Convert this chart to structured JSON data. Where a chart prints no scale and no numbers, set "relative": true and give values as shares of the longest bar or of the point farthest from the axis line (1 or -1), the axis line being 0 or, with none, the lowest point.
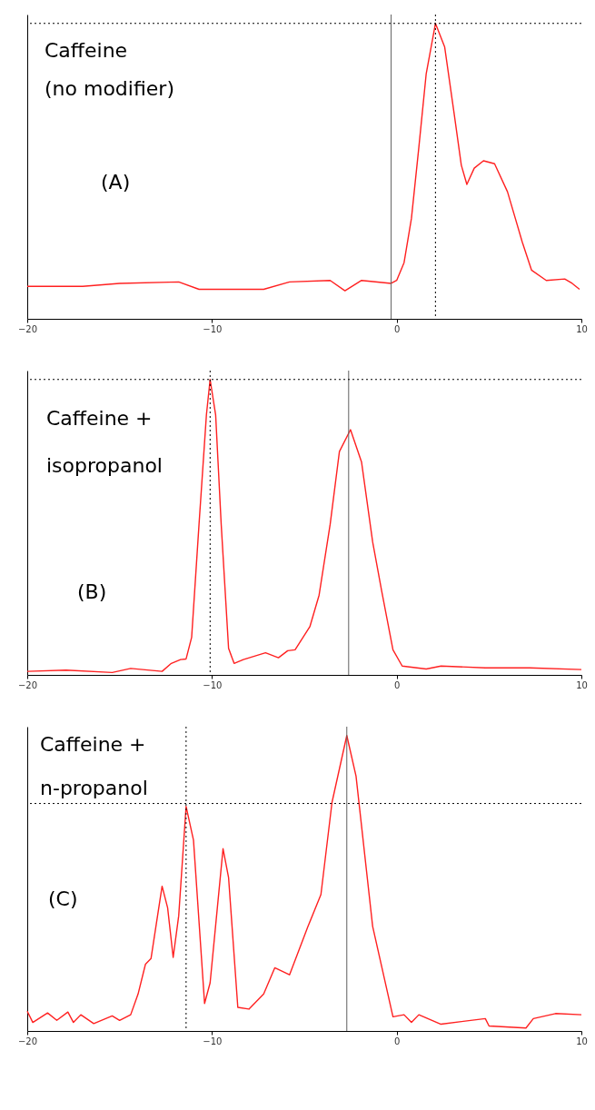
{
  "chart_data": [
    {
      "type": "line",
      "relative": true,
      "xlim": [
        -20,
        10
      ],
      "xticks": [
        -20,
        -10,
        0,
        10
      ],
      "tick_labels": "x",
      "x": [
        -20,
        -17,
        -15,
        -11.8,
        -10.7,
        -7.2,
        -5.8,
        -3.6,
        -2.8,
        -1.9,
        -0.3,
        0,
        0.4,
        0.8,
        1.2,
        1.6,
        2.1,
        2.6,
        3.1,
        3.5,
        3.8,
        4.2,
        4.7,
        5.3,
        6,
        6.8,
        7.3,
        8.1,
        9.1,
        9.5,
        9.9
      ],
      "series": [
        {
          "color": "#ff2020",
          "values": [
            0.11,
            0.11,
            0.12,
            0.125,
            0.1,
            0.1,
            0.125,
            0.13,
            0.095,
            0.13,
            0.12,
            0.13,
            0.19,
            0.34,
            0.58,
            0.83,
            1,
            0.92,
            0.7,
            0.52,
            0.455,
            0.51,
            0.535,
            0.525,
            0.43,
            0.26,
            0.165,
            0.13,
            0.135,
            0.12,
            0.1
          ]
        }
      ],
      "ref_lines": [
        {
          "axis": "x",
          "value": -0.3,
          "color": "#606060",
          "line_style": "solid"
        },
        {
          "axis": "x",
          "value": 2.1,
          "color": "#000000",
          "line_style": "dotted"
        },
        {
          "axis": "y",
          "value": 1,
          "color": "#000000",
          "line_style": "dotted"
        }
      ],
      "annotations": [
        "Caffeine",
        "(no modifier)",
        "(A)"
      ]
    },
    {
      "type": "line",
      "relative": true,
      "xlim": [
        -20,
        10
      ],
      "xticks": [
        -20,
        -10,
        0,
        10
      ],
      "tick_labels": "x",
      "x": [
        -20,
        -17.9,
        -15.4,
        -14.4,
        -12.7,
        -12.2,
        -11.7,
        -11.4,
        -11.1,
        -10.7,
        -10.3,
        -10.1,
        -9.8,
        -9.5,
        -9.1,
        -8.8,
        -8.3,
        -7.1,
        -6.4,
        -5.9,
        -5.5,
        -4.7,
        -4.2,
        -3.6,
        -3.1,
        -2.5,
        -1.9,
        -1.3,
        -0.8,
        -0.2,
        0.3,
        1.6,
        2.4,
        4.8,
        7.2,
        10
      ],
      "series": [
        {
          "color": "#ff2020",
          "values": [
            0.012,
            0.016,
            0.008,
            0.022,
            0.012,
            0.039,
            0.052,
            0.054,
            0.127,
            0.51,
            0.88,
            1,
            0.88,
            0.51,
            0.09,
            0.039,
            0.052,
            0.075,
            0.058,
            0.082,
            0.085,
            0.163,
            0.27,
            0.51,
            0.756,
            0.83,
            0.72,
            0.45,
            0.28,
            0.085,
            0.03,
            0.02,
            0.03,
            0.024,
            0.024,
            0.018
          ]
        }
      ],
      "ref_lines": [
        {
          "axis": "x",
          "value": -10.1,
          "color": "#000000",
          "line_style": "dotted"
        },
        {
          "axis": "x",
          "value": -2.6,
          "color": "#606060",
          "line_style": "solid"
        },
        {
          "axis": "y",
          "value": 1,
          "color": "#000000",
          "line_style": "dotted"
        }
      ],
      "annotations": [
        "Caffeine +",
        "isopropanol",
        "(B)"
      ]
    },
    {
      "type": "line",
      "relative": true,
      "xlim": [
        -20,
        10
      ],
      "xticks": [
        -20,
        -10,
        0,
        10
      ],
      "tick_labels": "x",
      "x": [
        -20,
        -19.7,
        -18.9,
        -18.4,
        -17.8,
        -17.5,
        -17.1,
        -16.4,
        -15.4,
        -15,
        -14.4,
        -14,
        -13.6,
        -13.3,
        -12.7,
        -12.4,
        -12.1,
        -11.8,
        -11.4,
        -11,
        -10.4,
        -10.1,
        -9.4,
        -9.1,
        -8.6,
        -8,
        -7.2,
        -6.6,
        -5.8,
        -4.8,
        -4.1,
        -3.5,
        -2.7,
        -2.2,
        -1.3,
        -0.2,
        0.4,
        0.8,
        1.2,
        2.4,
        4.8,
        5,
        7,
        7.4,
        8.6,
        10
      ],
      "series": [
        {
          "color": "#ff2020",
          "values": [
            0.067,
            0.029,
            0.061,
            0.036,
            0.064,
            0.029,
            0.055,
            0.025,
            0.051,
            0.036,
            0.055,
            0.125,
            0.226,
            0.245,
            0.49,
            0.417,
            0.249,
            0.39,
            0.76,
            0.646,
            0.093,
            0.163,
            0.617,
            0.519,
            0.08,
            0.074,
            0.125,
            0.214,
            0.19,
            0.354,
            0.462,
            0.774,
            1,
            0.863,
            0.354,
            0.048,
            0.055,
            0.029,
            0.055,
            0.023,
            0.042,
            0.017,
            0.01,
            0.042,
            0.059,
            0.055
          ]
        }
      ],
      "ref_lines": [
        {
          "axis": "x",
          "value": -11.4,
          "color": "#000000",
          "line_style": "dotted"
        },
        {
          "axis": "x",
          "value": -2.7,
          "color": "#606060",
          "line_style": "solid"
        },
        {
          "axis": "y",
          "value": 0.77,
          "color": "#000000",
          "line_style": "dotted"
        }
      ],
      "annotations": [
        "Caffeine +",
        "n-propanol",
        "(C)"
      ]
    }
  ]
}
